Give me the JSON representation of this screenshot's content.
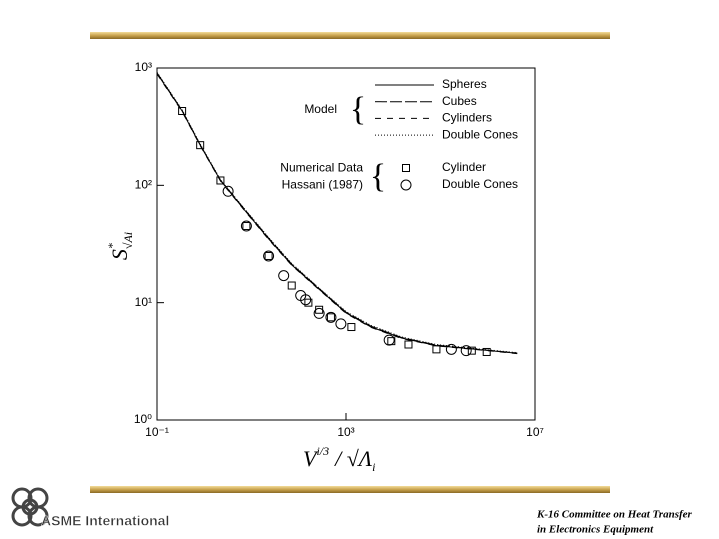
{
  "chart_data": {
    "type": "line",
    "ylabel": {
      "base": "S",
      "sup": "*",
      "sub": "√Ai"
    },
    "xlabel": {
      "base": "V",
      "sup": "i/3",
      "mid": "/ √Λ",
      "sub": "i"
    },
    "xlog": true,
    "ylog": true,
    "xlim": [
      0.1,
      10000000
    ],
    "ylim": [
      1,
      1000
    ],
    "xticks": [
      {
        "value": 0.1,
        "label": "10⁻¹"
      },
      {
        "value": 1000,
        "label": "10³"
      },
      {
        "value": 10000000,
        "label": "10⁷"
      }
    ],
    "yticks": [
      {
        "value": 1,
        "label": "10⁰"
      },
      {
        "value": 10,
        "label": "10¹"
      },
      {
        "value": 100,
        "label": "10²"
      },
      {
        "value": 1000,
        "label": "10³"
      }
    ],
    "legend_titles": [
      [
        "Model"
      ],
      [
        "Numerical Data",
        "Hassani (1987)"
      ]
    ],
    "series": [
      {
        "name": "Spheres",
        "type": "line",
        "dash": "solid",
        "color": "#000000",
        "x": [
          0.1,
          0.34,
          0.82,
          2.2,
          7.5,
          23,
          71,
          270,
          1000,
          3400,
          15000,
          82000,
          580000,
          4200000
        ],
        "values": [
          900,
          430,
          220,
          110,
          60,
          35,
          21,
          13,
          8.2,
          6.2,
          5.0,
          4.3,
          4.0,
          3.7
        ]
      },
      {
        "name": "Cubes",
        "type": "line",
        "dash": "long-dash",
        "color": "#000000",
        "x": [
          0.1,
          0.34,
          0.82,
          2.2,
          7.5,
          23,
          71,
          270,
          1000,
          3400,
          15000,
          82000,
          580000,
          4200000
        ],
        "values": [
          910,
          435,
          222,
          111,
          61,
          35.5,
          21.3,
          13.2,
          8.3,
          6.3,
          5.05,
          4.35,
          4.02,
          3.72
        ]
      },
      {
        "name": "Cylinders",
        "type": "line",
        "dash": "dash",
        "color": "#000000",
        "x": [
          0.1,
          0.34,
          0.82,
          2.2,
          7.5,
          23,
          71,
          270,
          1000,
          3400,
          15000,
          82000,
          580000,
          4200000
        ],
        "values": [
          890,
          425,
          218,
          109,
          59.5,
          34.6,
          20.8,
          12.9,
          8.1,
          6.15,
          4.95,
          4.28,
          3.98,
          3.68
        ]
      },
      {
        "name": "Double Cones",
        "type": "line",
        "dash": "dot",
        "color": "#000000",
        "x": [
          0.1,
          0.34,
          0.82,
          2.2,
          7.5,
          23,
          71,
          270,
          1000,
          3400,
          15000,
          82000,
          580000,
          4200000
        ],
        "values": [
          920,
          440,
          225,
          112,
          61.5,
          36,
          21.6,
          13.3,
          8.4,
          6.4,
          5.1,
          4.4,
          4.05,
          3.75
        ]
      },
      {
        "name": "Cylinder",
        "type": "scatter",
        "marker": "square",
        "color": "#000000",
        "x": [
          0.34,
          0.82,
          2.2,
          7.8,
          23,
          71,
          160,
          270,
          480,
          1300,
          9100,
          21000,
          82000,
          460000,
          950000
        ],
        "values": [
          430,
          220,
          110,
          45,
          25,
          14,
          10,
          8.7,
          7.5,
          6.2,
          4.7,
          4.4,
          4.0,
          3.9,
          3.8
        ]
      },
      {
        "name": "Double Cones",
        "type": "scatter",
        "marker": "circle",
        "color": "#000000",
        "x": [
          3.2,
          7.8,
          23,
          48,
          110,
          140,
          270,
          480,
          780,
          8200,
          170000,
          350000
        ],
        "values": [
          89,
          45,
          25,
          17,
          11.5,
          10.6,
          8.1,
          7.5,
          6.6,
          4.8,
          4.0,
          3.9
        ]
      }
    ]
  },
  "footer": {
    "logo": "ASME International",
    "note": [
      "K-16 Committee on Heat Transfer",
      "in Electronics Equipment"
    ]
  }
}
